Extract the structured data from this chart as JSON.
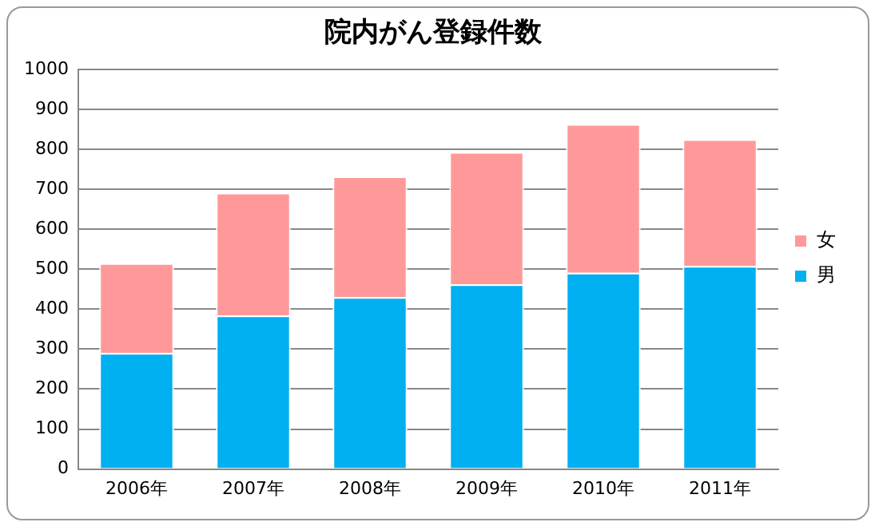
{
  "chart_data": {
    "type": "bar",
    "title": "院内がん登録件数",
    "categories": [
      "2006年",
      "2007年",
      "2008年",
      "2009年",
      "2010年",
      "2011年"
    ],
    "series": [
      {
        "name": "男",
        "color": "#00b0f0",
        "values": [
          290,
          384,
          430,
          462,
          491,
          508
        ]
      },
      {
        "name": "女",
        "color": "#ff9999",
        "values": [
          225,
          307,
          302,
          331,
          372,
          317
        ]
      }
    ],
    "stacked": true,
    "ylim": [
      0,
      1000
    ],
    "yticks": [
      0,
      100,
      200,
      300,
      400,
      500,
      600,
      700,
      800,
      900,
      1000
    ],
    "grid": "y",
    "legend": "right"
  }
}
